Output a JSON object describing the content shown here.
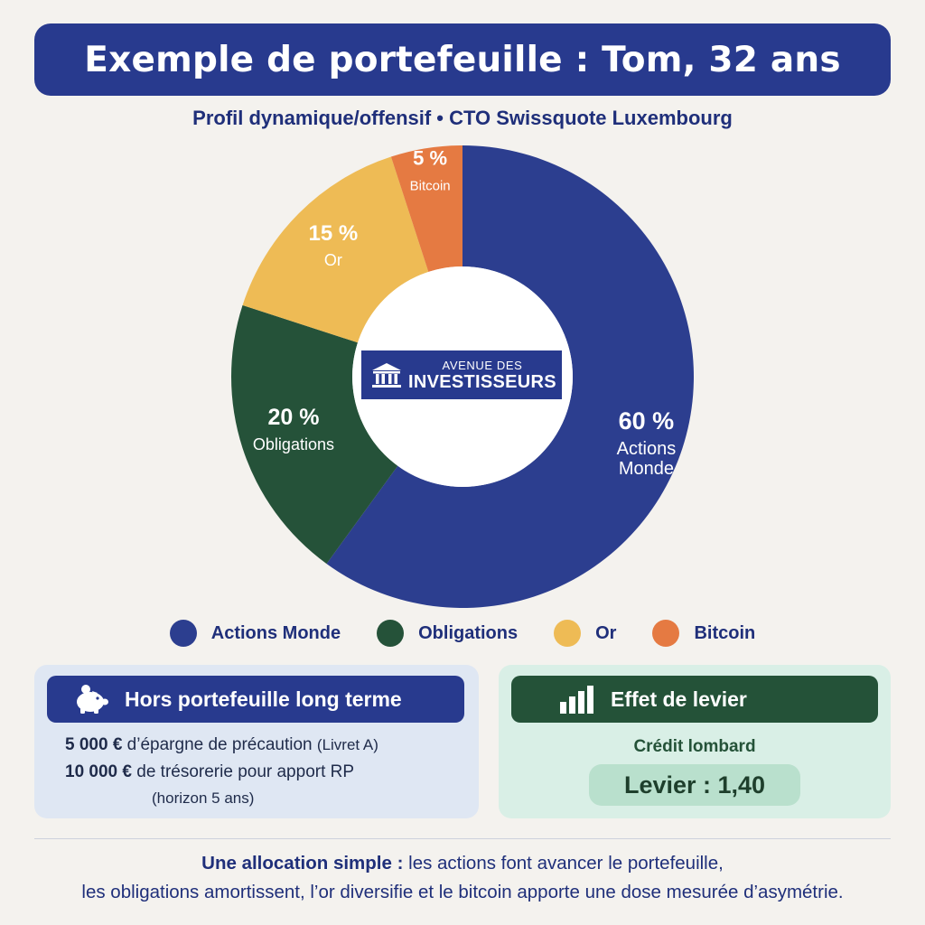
{
  "header": {
    "title": "Exemple de portefeuille : Tom, 32 ans",
    "subtitle": "Profil dynamique/offensif • CTO Swissquote Luxembourg"
  },
  "logo": {
    "line1": "AVENUE DES",
    "line2": "INVESTISSEURS",
    "icon": "bank-building-icon"
  },
  "colors": {
    "primary": "#283a8e",
    "actions": "#2c3e8f",
    "obligations": "#255239",
    "or": "#eebb55",
    "bitcoin": "#e57a42"
  },
  "chart_data": {
    "type": "pie",
    "donut": true,
    "title": "",
    "slices": [
      {
        "name": "Actions Monde",
        "value": 60,
        "label": "60 %",
        "color": "#2c3e8f"
      },
      {
        "name": "Obligations",
        "value": 20,
        "label": "20 %",
        "color": "#255239"
      },
      {
        "name": "Or",
        "value": 15,
        "label": "15 %",
        "color": "#eebb55"
      },
      {
        "name": "Bitcoin",
        "value": 5,
        "label": "5 %",
        "color": "#e57a42"
      }
    ],
    "legend_position": "bottom"
  },
  "legend": [
    {
      "label": "Actions Monde",
      "color": "#2c3e8f"
    },
    {
      "label": "Obligations",
      "color": "#255239"
    },
    {
      "label": "Or",
      "color": "#eebb55"
    },
    {
      "label": "Bitcoin",
      "color": "#e57a42"
    }
  ],
  "cards": {
    "left": {
      "title": "Hors portefeuille long terme",
      "icon": "piggy-bank-icon",
      "line1_amount": "5 000 €",
      "line1_text": " d’épargne de précaution ",
      "line1_note": "(Livret A)",
      "line2_amount": "10 000 €",
      "line2_text": " de trésorerie pour apport RP",
      "line3_note": "(horizon 5 ans)"
    },
    "right": {
      "title": "Effet de levier",
      "icon": "bar-chart-icon",
      "subtitle": "Crédit lombard",
      "pill": "Levier : 1,40"
    }
  },
  "footer": {
    "bold": "Une allocation simple :",
    "line1_rest": " les actions font avancer le portefeuille,",
    "line2": "les obligations amortissent, l’or diversifie et le bitcoin apporte une dose mesurée d’asymétrie."
  }
}
